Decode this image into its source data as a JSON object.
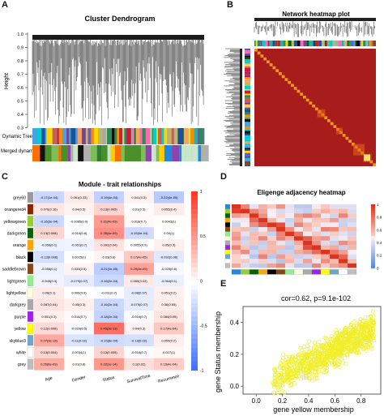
{
  "panelA": {
    "label": "A",
    "title": "Cluster Dendrogram",
    "ylabel": "Height",
    "yticks": [
      "1.0",
      "0.9",
      "0.8",
      "0.7",
      "0.6",
      "0.5",
      "0.4",
      "0.3"
    ],
    "row1": "Dynamic Tree",
    "row2": "Merged dynamic"
  },
  "panelB": {
    "label": "B",
    "title": "Network heatmap plot"
  },
  "panelC": {
    "label": "C",
    "title": "Module - trait relationships",
    "rows": [
      "grey60",
      "orangered4",
      "yellowgreen",
      "darkgreen",
      "orange",
      "black",
      "saddlebrown",
      "lightgreen",
      "lightyellow",
      "darkgrey",
      "purple",
      "yellow",
      "skyblue3",
      "white",
      "grey"
    ],
    "row_colors": [
      "#9a9a9a",
      "#8b2500",
      "#9acd32",
      "#006400",
      "#ffa500",
      "#000000",
      "#8b4513",
      "#90ee90",
      "#ffffe0",
      "#a9a9a9",
      "#a020f0",
      "#ffff00",
      "#6ca6cd",
      "#ffffff",
      "#bebebe"
    ],
    "cols": [
      "Age",
      "Gender",
      "Status",
      "SurvivalTime",
      "Recurrence"
    ],
    "cells": [
      [
        "-0.17(1e-04)",
        "0.061(0.33)",
        "-0.19(4e-04)",
        "0.041(0.3)",
        "-0.22(4e-05)"
      ],
      [
        "0.076(0.16)",
        "0.04(0.5)",
        "0.13(0.005)",
        "0.01(0.5)",
        "0.055(0.4)"
      ],
      [
        "-0.16(3e-04)",
        "-0.0085(0.9)",
        "0.31(4e-09)",
        "0.018(0.7)",
        "0.0043(1)"
      ],
      [
        "0.13(0.008)",
        "-0.014(0.8)",
        "0.35(4e-09)",
        "-0.15(4e-04)",
        "0.00(1)"
      ],
      [
        "-0.056(0.1)",
        "-0.051(0.7)",
        "0.092(0.04)",
        "0.0055(0.9)",
        "0.05(0.3)"
      ],
      [
        "-0.13(0.006)",
        "0.0025(1)",
        "0.03(0.6)",
        "0.17(4e-05)",
        "-0.092(0.06)"
      ],
      [
        "-0.056(0.1)",
        "0.033(0.5)",
        "-0.21(1e-05)",
        "0.29(3e-09)",
        "-0.025(0.6)"
      ],
      [
        "-0.045(0.3)",
        "-0.079(0.07)",
        "-0.16(2e-04)",
        "0.065(0.03)",
        "-0.064(0.1)"
      ],
      [
        "0.06(0.1)",
        "0.006(0.9)",
        "-0.011(0.7)",
        "-0.08(0.07)",
        "0.051(0.2)"
      ],
      [
        "0.087(0.04)",
        "0.05(0.3)",
        "-0.16(2e-04)",
        "-0.079(0.07)",
        "0.06(0.05)"
      ],
      [
        "0.051(0.3)",
        "0.016(0.7)",
        "-0.18(2e-04)",
        "-0.016(0.7)",
        "0.084(0.05)"
      ],
      [
        "0.12(0.008)",
        "-0.029(0.5)",
        "0.45(9e-13)",
        "0.04(0.3)",
        "0.17(4e-04)"
      ],
      [
        "0.27(3e-13)",
        "-0.11(0.02)",
        "-0.15(8e-04)",
        "-0.13(0.02)",
        "0.054(0.2)"
      ],
      [
        "0.13(0.004)",
        "0.0034(1)",
        "0.13(0.005)",
        "-0.016(0.7)",
        "0.027(1)"
      ],
      [
        "0.26(8e-09)",
        "0.01(0.8)",
        "0.32(1e-14)",
        "0.1(0.02)",
        "0.16(4e-04)"
      ]
    ],
    "values": [
      [
        -0.17,
        0.061,
        -0.19,
        0.041,
        -0.22
      ],
      [
        0.076,
        0.04,
        0.13,
        0.01,
        0.055
      ],
      [
        -0.16,
        -0.0085,
        0.31,
        0.018,
        0.0043
      ],
      [
        0.13,
        -0.014,
        0.35,
        -0.15,
        0.0
      ],
      [
        -0.056,
        -0.051,
        0.092,
        0.0055,
        0.05
      ],
      [
        -0.13,
        0.0025,
        0.03,
        0.17,
        -0.092
      ],
      [
        -0.056,
        0.033,
        -0.21,
        0.29,
        -0.025
      ],
      [
        -0.045,
        -0.079,
        -0.16,
        0.065,
        -0.064
      ],
      [
        0.06,
        0.006,
        -0.011,
        -0.08,
        0.051
      ],
      [
        0.087,
        0.05,
        -0.16,
        -0.079,
        0.06
      ],
      [
        0.051,
        0.016,
        -0.18,
        -0.016,
        0.084
      ],
      [
        0.12,
        -0.029,
        0.45,
        0.04,
        0.17
      ],
      [
        0.27,
        -0.11,
        -0.15,
        -0.13,
        0.054
      ],
      [
        0.13,
        0.0034,
        0.13,
        -0.016,
        0.027
      ],
      [
        0.26,
        0.01,
        0.32,
        0.1,
        0.16
      ]
    ],
    "scale_ticks": [
      "1",
      "0.5",
      "0",
      "-0.5",
      "-1"
    ]
  },
  "panelD": {
    "label": "D",
    "title": "Eligenge adjacency heatmap",
    "scale_ticks": [
      "1",
      "0.8",
      "0.6",
      "0.4",
      "0.2",
      "0"
    ]
  },
  "panelE": {
    "label": "E",
    "title": "cor=0.62, p=9.1e-102",
    "xlabel": "gene yellow membership",
    "ylabel": "gene Status membership",
    "xticks": [
      "0.0",
      "0.2",
      "0.4",
      "0.6",
      "0.8"
    ],
    "yticks": [
      "0.0",
      "0.2",
      "0.4"
    ],
    "point_color": "#f0ee2a"
  },
  "chart_data": [
    {
      "type": "heatmap",
      "title": "Module - trait relationships",
      "x": [
        "Age",
        "Gender",
        "Status",
        "SurvivalTime",
        "Recurrence"
      ],
      "y": [
        "grey60",
        "orangered4",
        "yellowgreen",
        "darkgreen",
        "orange",
        "black",
        "saddlebrown",
        "lightgreen",
        "lightyellow",
        "darkgrey",
        "purple",
        "yellow",
        "skyblue3",
        "white",
        "grey"
      ],
      "zlim": [
        -1,
        1
      ]
    },
    {
      "type": "scatter",
      "title": "cor=0.62, p=9.1e-102",
      "xlabel": "gene yellow membership",
      "ylabel": "gene Status membership",
      "xlim": [
        -0.1,
        0.95
      ],
      "ylim": [
        -0.05,
        0.5
      ]
    }
  ]
}
